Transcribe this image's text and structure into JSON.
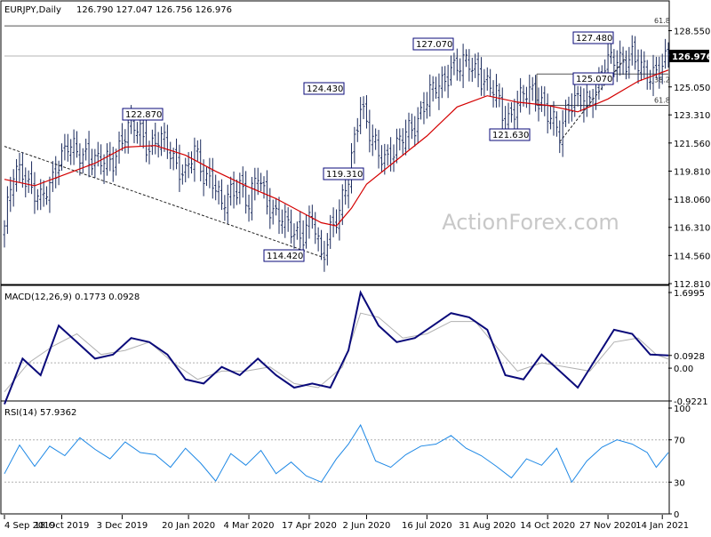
{
  "main_header": {
    "symbol": "EURJPY,Daily",
    "ohlc": "126.790 127.047 126.756 126.976"
  },
  "watermark": "ActionForex.com",
  "colors": {
    "price_bars": "#1a2a5c",
    "sma": "#d40000",
    "macd_line": "#0a0a7a",
    "macd_signal": "#b0b0b0",
    "rsi_line": "#1e88e5",
    "grid_level": "#555555",
    "label_border": "#0a0a7a"
  },
  "chart_data": [
    {
      "type": "line",
      "id": "price",
      "title": "EURJPY,Daily",
      "ylim": [
        112.81,
        129.96
      ],
      "yticks": [
        "128.550",
        "126.976",
        "125.050",
        "123.310",
        "121.560",
        "119.810",
        "118.060",
        "116.310",
        "114.560",
        "112.810"
      ],
      "xticks": [
        "4 Sep 2019",
        "18 Oct 2019",
        "3 Dec 2019",
        "20 Jan 2020",
        "4 Mar 2020",
        "17 Apr 2020",
        "2 Jun 2020",
        "16 Jul 2020",
        "31 Aug 2020",
        "14 Oct 2020",
        "27 Nov 2020",
        "14 Jan 2021"
      ],
      "current_price": "126.976",
      "series": [
        {
          "values": [
            [
              0,
              116.4
            ],
            [
              3,
              119.5
            ],
            [
              6,
              119.9
            ],
            [
              9,
              118.8
            ],
            [
              12,
              117.8
            ],
            [
              15,
              118.9
            ],
            [
              18,
              120.6
            ],
            [
              21,
              121.3
            ],
            [
              24,
              120.8
            ],
            [
              27,
              121.0
            ],
            [
              30,
              120.4
            ],
            [
              33,
              120.2
            ],
            [
              36,
              120.6
            ],
            [
              39,
              121.9
            ],
            [
              42,
              122.5
            ],
            [
              45,
              122.3
            ],
            [
              48,
              121.4
            ],
            [
              51,
              121.7
            ],
            [
              54,
              121.3
            ],
            [
              57,
              120.4
            ],
            [
              60,
              119.6
            ],
            [
              63,
              120.9
            ],
            [
              66,
              119.7
            ],
            [
              69,
              119.4
            ],
            [
              72,
              117.4
            ],
            [
              75,
              118.5
            ],
            [
              78,
              119.2
            ],
            [
              81,
              117.5
            ],
            [
              84,
              119.6
            ],
            [
              87,
              118.1
            ],
            [
              90,
              117.0
            ],
            [
              93,
              116.5
            ],
            [
              96,
              116.2
            ],
            [
              99,
              115.9
            ],
            [
              102,
              116.8
            ],
            [
              105,
              114.4
            ],
            [
              108,
              116.4
            ],
            [
              111,
              117.0
            ],
            [
              114,
              119.3
            ],
            [
              116,
              122.0
            ],
            [
              118,
              124.2
            ],
            [
              121,
              122.0
            ],
            [
              124,
              120.8
            ],
            [
              127,
              120.8
            ],
            [
              130,
              121.3
            ],
            [
              133,
              122.0
            ],
            [
              136,
              122.8
            ],
            [
              139,
              124.0
            ],
            [
              142,
              124.7
            ],
            [
              145,
              125.3
            ],
            [
              148,
              126.4
            ],
            [
              151,
              126.2
            ],
            [
              154,
              126.5
            ],
            [
              157,
              126.1
            ],
            [
              160,
              125.1
            ],
            [
              163,
              124.5
            ],
            [
              166,
              123.0
            ],
            [
              169,
              123.7
            ],
            [
              172,
              124.4
            ],
            [
              175,
              124.8
            ],
            [
              178,
              124.2
            ],
            [
              181,
              122.9
            ],
            [
              184,
              122.0
            ],
            [
              187,
              124.2
            ],
            [
              190,
              124.2
            ],
            [
              193,
              123.9
            ],
            [
              196,
              124.9
            ],
            [
              199,
              126.6
            ],
            [
              202,
              126.5
            ],
            [
              205,
              126.6
            ],
            [
              208,
              127.3
            ],
            [
              211,
              126.0
            ],
            [
              214,
              125.6
            ],
            [
              217,
              126.5
            ],
            [
              220,
              127.0
            ]
          ],
          "name": ""
        },
        {
          "values": [
            [
              0,
              119.3
            ],
            [
              10,
              118.9
            ],
            [
              20,
              119.6
            ],
            [
              30,
              120.3
            ],
            [
              40,
              121.3
            ],
            [
              50,
              121.4
            ],
            [
              60,
              120.8
            ],
            [
              70,
              119.8
            ],
            [
              80,
              118.9
            ],
            [
              90,
              118.1
            ],
            [
              100,
              117.1
            ],
            [
              105,
              116.6
            ],
            [
              110,
              116.4
            ],
            [
              115,
              117.5
            ],
            [
              120,
              119.0
            ],
            [
              130,
              120.5
            ],
            [
              140,
              122.0
            ],
            [
              150,
              123.8
            ],
            [
              160,
              124.5
            ],
            [
              170,
              124.1
            ],
            [
              180,
              123.9
            ],
            [
              190,
              123.5
            ],
            [
              200,
              124.3
            ],
            [
              210,
              125.4
            ],
            [
              220,
              126.1
            ]
          ],
          "name": ""
        }
      ],
      "annotations": [
        "122.870",
        "124.430",
        "119.310",
        "114.420",
        "127.070",
        "121.630",
        "127.480",
        "125.070"
      ],
      "fib_labels": [
        "61.8",
        "38.2",
        "61.8"
      ]
    },
    {
      "type": "line",
      "id": "macd",
      "title": "MACD(12,26,9) 0.1773 0.0928",
      "ylim": [
        -0.9221,
        1.6995
      ],
      "yticks": [
        "1.6995",
        "0.0928",
        "0.00",
        "-0.9221"
      ],
      "series": [
        {
          "values": [
            [
              0,
              -1.0
            ],
            [
              6,
              0.1
            ],
            [
              12,
              -0.3
            ],
            [
              18,
              0.9
            ],
            [
              24,
              0.5
            ],
            [
              30,
              0.1
            ],
            [
              36,
              0.2
            ],
            [
              42,
              0.6
            ],
            [
              48,
              0.5
            ],
            [
              54,
              0.2
            ],
            [
              60,
              -0.4
            ],
            [
              66,
              -0.5
            ],
            [
              72,
              -0.1
            ],
            [
              78,
              -0.3
            ],
            [
              84,
              0.1
            ],
            [
              90,
              -0.3
            ],
            [
              96,
              -0.6
            ],
            [
              102,
              -0.5
            ],
            [
              108,
              -0.6
            ],
            [
              114,
              0.3
            ],
            [
              118,
              1.7
            ],
            [
              124,
              0.9
            ],
            [
              130,
              0.5
            ],
            [
              136,
              0.6
            ],
            [
              142,
              0.9
            ],
            [
              148,
              1.2
            ],
            [
              154,
              1.1
            ],
            [
              160,
              0.8
            ],
            [
              166,
              -0.3
            ],
            [
              172,
              -0.4
            ],
            [
              178,
              0.2
            ],
            [
              184,
              -0.2
            ],
            [
              190,
              -0.6
            ],
            [
              196,
              0.1
            ],
            [
              202,
              0.8
            ],
            [
              208,
              0.7
            ],
            [
              214,
              0.2
            ],
            [
              220,
              0.18
            ]
          ],
          "name": ""
        },
        {
          "values": [
            [
              0,
              -0.7
            ],
            [
              8,
              0.0
            ],
            [
              16,
              0.4
            ],
            [
              24,
              0.7
            ],
            [
              32,
              0.2
            ],
            [
              40,
              0.3
            ],
            [
              48,
              0.5
            ],
            [
              56,
              0.0
            ],
            [
              64,
              -0.4
            ],
            [
              72,
              -0.2
            ],
            [
              80,
              -0.2
            ],
            [
              88,
              -0.1
            ],
            [
              96,
              -0.5
            ],
            [
              104,
              -0.6
            ],
            [
              112,
              -0.1
            ],
            [
              118,
              1.2
            ],
            [
              124,
              1.1
            ],
            [
              132,
              0.6
            ],
            [
              140,
              0.7
            ],
            [
              148,
              1.0
            ],
            [
              156,
              1.0
            ],
            [
              164,
              0.3
            ],
            [
              170,
              -0.2
            ],
            [
              178,
              0.0
            ],
            [
              186,
              -0.1
            ],
            [
              194,
              -0.2
            ],
            [
              202,
              0.5
            ],
            [
              210,
              0.6
            ],
            [
              216,
              0.2
            ],
            [
              220,
              0.09
            ]
          ],
          "name": ""
        }
      ]
    },
    {
      "type": "line",
      "id": "rsi",
      "title": "RSI(14) 57.9362",
      "ylim": [
        0,
        100
      ],
      "yticks": [
        "100",
        "70",
        "30",
        "0"
      ],
      "series": [
        {
          "values": [
            [
              0,
              38
            ],
            [
              5,
              65
            ],
            [
              10,
              45
            ],
            [
              15,
              64
            ],
            [
              20,
              55
            ],
            [
              25,
              72
            ],
            [
              30,
              61
            ],
            [
              35,
              52
            ],
            [
              40,
              68
            ],
            [
              45,
              58
            ],
            [
              50,
              56
            ],
            [
              55,
              44
            ],
            [
              60,
              62
            ],
            [
              65,
              48
            ],
            [
              70,
              31
            ],
            [
              75,
              57
            ],
            [
              80,
              46
            ],
            [
              85,
              60
            ],
            [
              90,
              38
            ],
            [
              95,
              49
            ],
            [
              100,
              36
            ],
            [
              105,
              30
            ],
            [
              110,
              52
            ],
            [
              114,
              66
            ],
            [
              118,
              84
            ],
            [
              123,
              50
            ],
            [
              128,
              44
            ],
            [
              133,
              56
            ],
            [
              138,
              64
            ],
            [
              143,
              66
            ],
            [
              148,
              74
            ],
            [
              153,
              62
            ],
            [
              158,
              55
            ],
            [
              163,
              45
            ],
            [
              168,
              34
            ],
            [
              173,
              52
            ],
            [
              178,
              46
            ],
            [
              183,
              62
            ],
            [
              188,
              30
            ],
            [
              193,
              50
            ],
            [
              198,
              63
            ],
            [
              203,
              70
            ],
            [
              208,
              66
            ],
            [
              213,
              58
            ],
            [
              216,
              44
            ],
            [
              220,
              57.9
            ]
          ],
          "name": ""
        }
      ],
      "levels": [
        70,
        30
      ]
    }
  ]
}
